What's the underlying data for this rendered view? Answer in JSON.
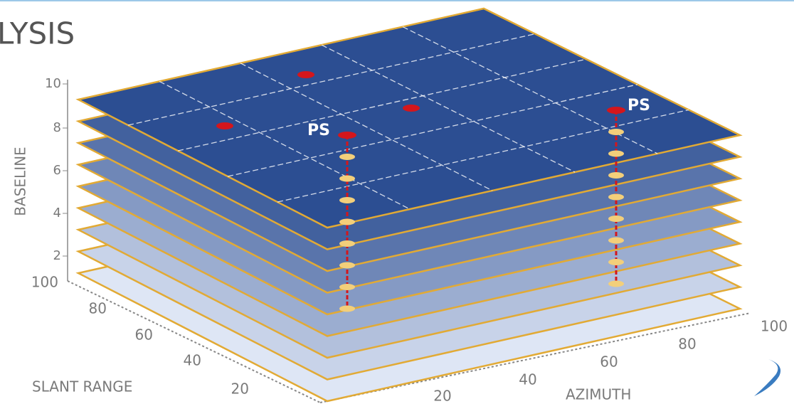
{
  "title": "LYSIS",
  "axes": {
    "baseline": {
      "label": "BASELINE",
      "ticks": [
        2,
        4,
        6,
        8,
        10
      ]
    },
    "slant_range": {
      "label": "SLANT RANGE",
      "ticks": [
        20,
        40,
        60,
        80,
        100
      ]
    },
    "azimuth": {
      "label": "AZIMUTH",
      "ticks": [
        20,
        40,
        60,
        80,
        100
      ]
    }
  },
  "markers": [
    "PS",
    "PS"
  ]
}
